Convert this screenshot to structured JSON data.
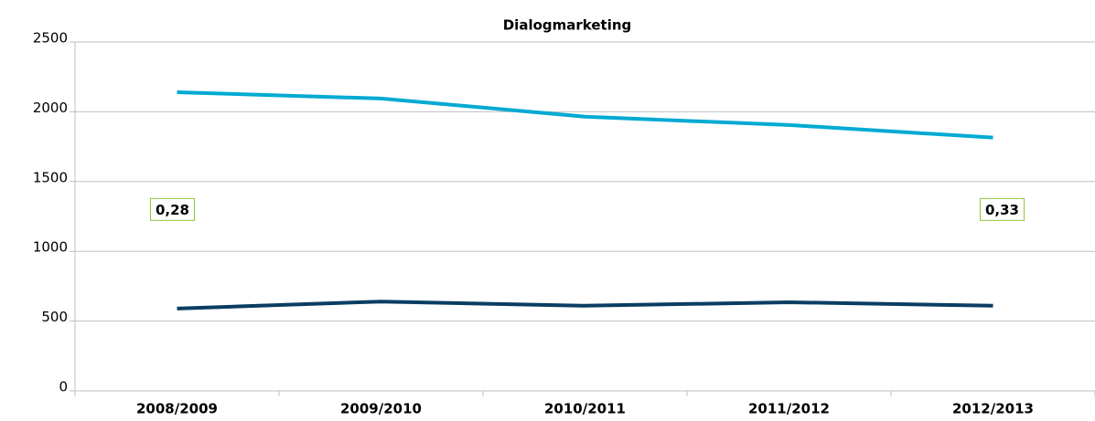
{
  "chart_data": {
    "type": "line",
    "title": "Dialogmarketing",
    "categories": [
      "2008/2009",
      "2009/2010",
      "2010/2011",
      "2011/2012",
      "2012/2013"
    ],
    "series": [
      {
        "color": "#00aad2",
        "values": [
          2140,
          2095,
          1965,
          1905,
          1815
        ]
      },
      {
        "color": "#0a3d62",
        "values": [
          590,
          640,
          610,
          635,
          610
        ]
      }
    ],
    "annotations": [
      "0,28",
      "0,33"
    ],
    "ylim": [
      0,
      2500
    ],
    "yticks": [
      0,
      500,
      1000,
      1500,
      2000,
      2500
    ],
    "grid": true
  }
}
